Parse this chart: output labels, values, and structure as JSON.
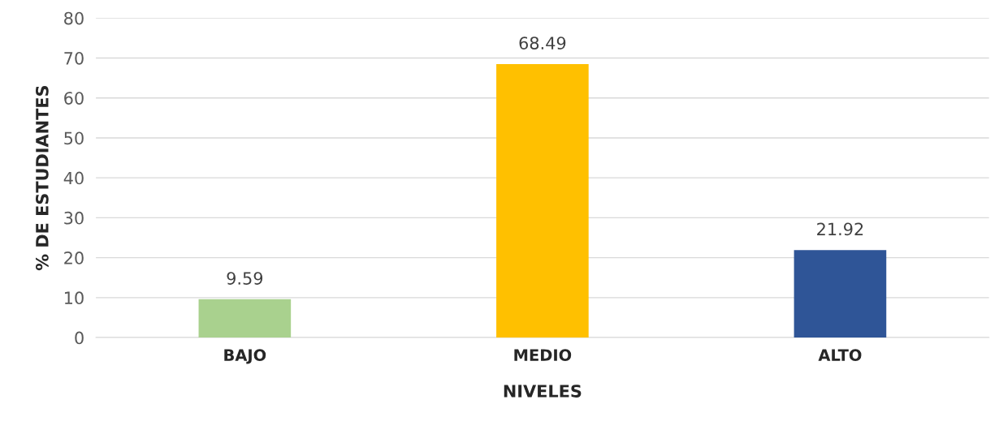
{
  "chart_data": {
    "type": "bar",
    "xlabel": "NIVELES",
    "ylabel": "% DE ESTUDIANTES",
    "categories": [
      "BAJO",
      "MEDIO",
      "ALTO"
    ],
    "values": [
      9.59,
      68.49,
      21.92
    ],
    "colors": [
      "#a9d18e",
      "#ffc000",
      "#2f5597"
    ],
    "ylim": [
      0,
      80
    ],
    "yticks": [
      0,
      10,
      20,
      30,
      40,
      50,
      60,
      70,
      80
    ],
    "grid": "y",
    "data_labels": true,
    "legend": false
  }
}
